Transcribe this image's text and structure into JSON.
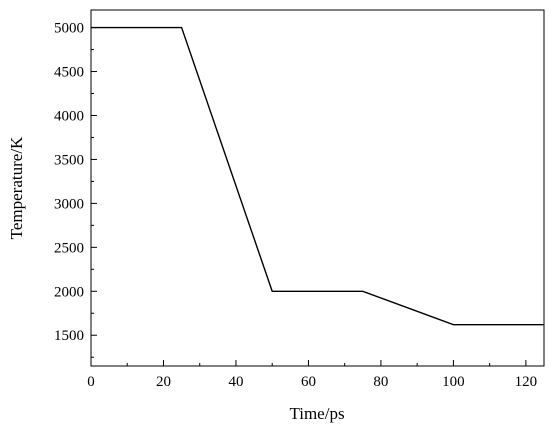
{
  "chart_data": {
    "type": "line",
    "title": "",
    "xlabel": "Time/ps",
    "ylabel": "Temperature/K",
    "xlim": [
      0,
      125
    ],
    "ylim": [
      1150,
      5200
    ],
    "xticks": [
      0,
      20,
      40,
      60,
      80,
      100,
      120
    ],
    "yticks": [
      1500,
      2000,
      2500,
      3000,
      3500,
      4000,
      4500,
      5000
    ],
    "grid": false,
    "legend": "none",
    "line_color": "#000000",
    "series": [
      {
        "x": [
          0,
          25,
          50,
          75,
          100,
          125
        ],
        "y": [
          5000,
          5000,
          2000,
          2000,
          1620,
          1620
        ]
      }
    ]
  }
}
